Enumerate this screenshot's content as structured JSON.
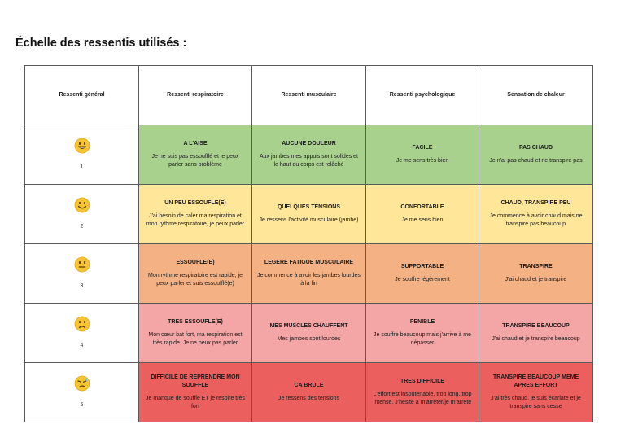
{
  "title": "Échelle des ressentis utilisés :",
  "headers": [
    "Ressenti général",
    "Ressenti respiratoire",
    "Ressenti musculaire",
    "Ressenti psychologique",
    "Sensation de chaleur"
  ],
  "colors": {
    "level1": "#a9d18e",
    "level2": "#ffe699",
    "level3": "#f4b183",
    "level4": "#f4a6a6",
    "level5": "#ec5f5f"
  },
  "rows": [
    {
      "level": "1",
      "icon": "grinning-face-icon",
      "cells": [
        {
          "title": "A L'AISE",
          "text": "Je ne suis pas essoufflé et je peux parler sans problème"
        },
        {
          "title": "AUCUNE DOULEUR",
          "text": "Aux jambes mes appuis sont solides et le haut du corps est relâché"
        },
        {
          "title": "FACILE",
          "text": "Je me sens très bien"
        },
        {
          "title": "PAS CHAUD",
          "text": "Je n'ai pas chaud et ne transpire pas"
        }
      ]
    },
    {
      "level": "2",
      "icon": "smiling-face-icon",
      "cells": [
        {
          "title": "UN PEU ESSOUFLE(E)",
          "text": "J'ai besoin de caler ma respiration et mon rythme respiratoire, je peux parler"
        },
        {
          "title": "QUELQUES TENSIONS",
          "text": "Je ressens l'activité musculaire (jambe)"
        },
        {
          "title": "CONFORTABLE",
          "text": "Je me sens bien"
        },
        {
          "title": "CHAUD, TRANSPIRE PEU",
          "text": "Je commence à avoir chaud mais ne transpire pas beaucoup"
        }
      ]
    },
    {
      "level": "3",
      "icon": "neutral-face-icon",
      "cells": [
        {
          "title": "ESSOUFLE(E)",
          "text": "Mon rythme respiratoire est rapide, je peux parler et suis essoufflé(e)"
        },
        {
          "title": "LEGERE FATIGUE MUSCULAIRE",
          "text": "Je commence à avoir les jambes lourdes à la fin"
        },
        {
          "title": "SUPPORTABLE",
          "text": "Je souffre légèrement"
        },
        {
          "title": "TRANSPIRE",
          "text": "J'ai chaud et je transpire"
        }
      ]
    },
    {
      "level": "4",
      "icon": "sad-face-icon",
      "cells": [
        {
          "title": "TRES ESSOUFLE(E)",
          "text": "Mon cœur bat fort, ma respiration est très rapide. Je ne peux pas parler"
        },
        {
          "title": "MES MUSCLES CHAUFFENT",
          "text": "Mes jambes sont lourdes"
        },
        {
          "title": "PENIBLE",
          "text": "Je souffre beaucoup mais j'arrive à me dépasser"
        },
        {
          "title": "TRANSPIRE BEAUCOUP",
          "text": "J'ai chaud et je transpire beaucoup"
        }
      ]
    },
    {
      "level": "5",
      "icon": "sweating-face-icon",
      "cells": [
        {
          "title": "DIFFICILE DE REPRENDRE MON SOUFFLE",
          "text": "Je manque de souffle ET je respire très fort"
        },
        {
          "title": "CA BRULE",
          "text": "Je ressens des tensions"
        },
        {
          "title": "TRES DIFFICILE",
          "text": "L'effort est insoutenable, trop long, trop intense. J'hésite à m'arrêter/je m'arrête"
        },
        {
          "title": "TRANSPIRE BEAUCOUP MEME APRES EFFORT",
          "text": "J'ai très chaud, je suis écarlate et je transpire sans cesse"
        }
      ]
    }
  ]
}
